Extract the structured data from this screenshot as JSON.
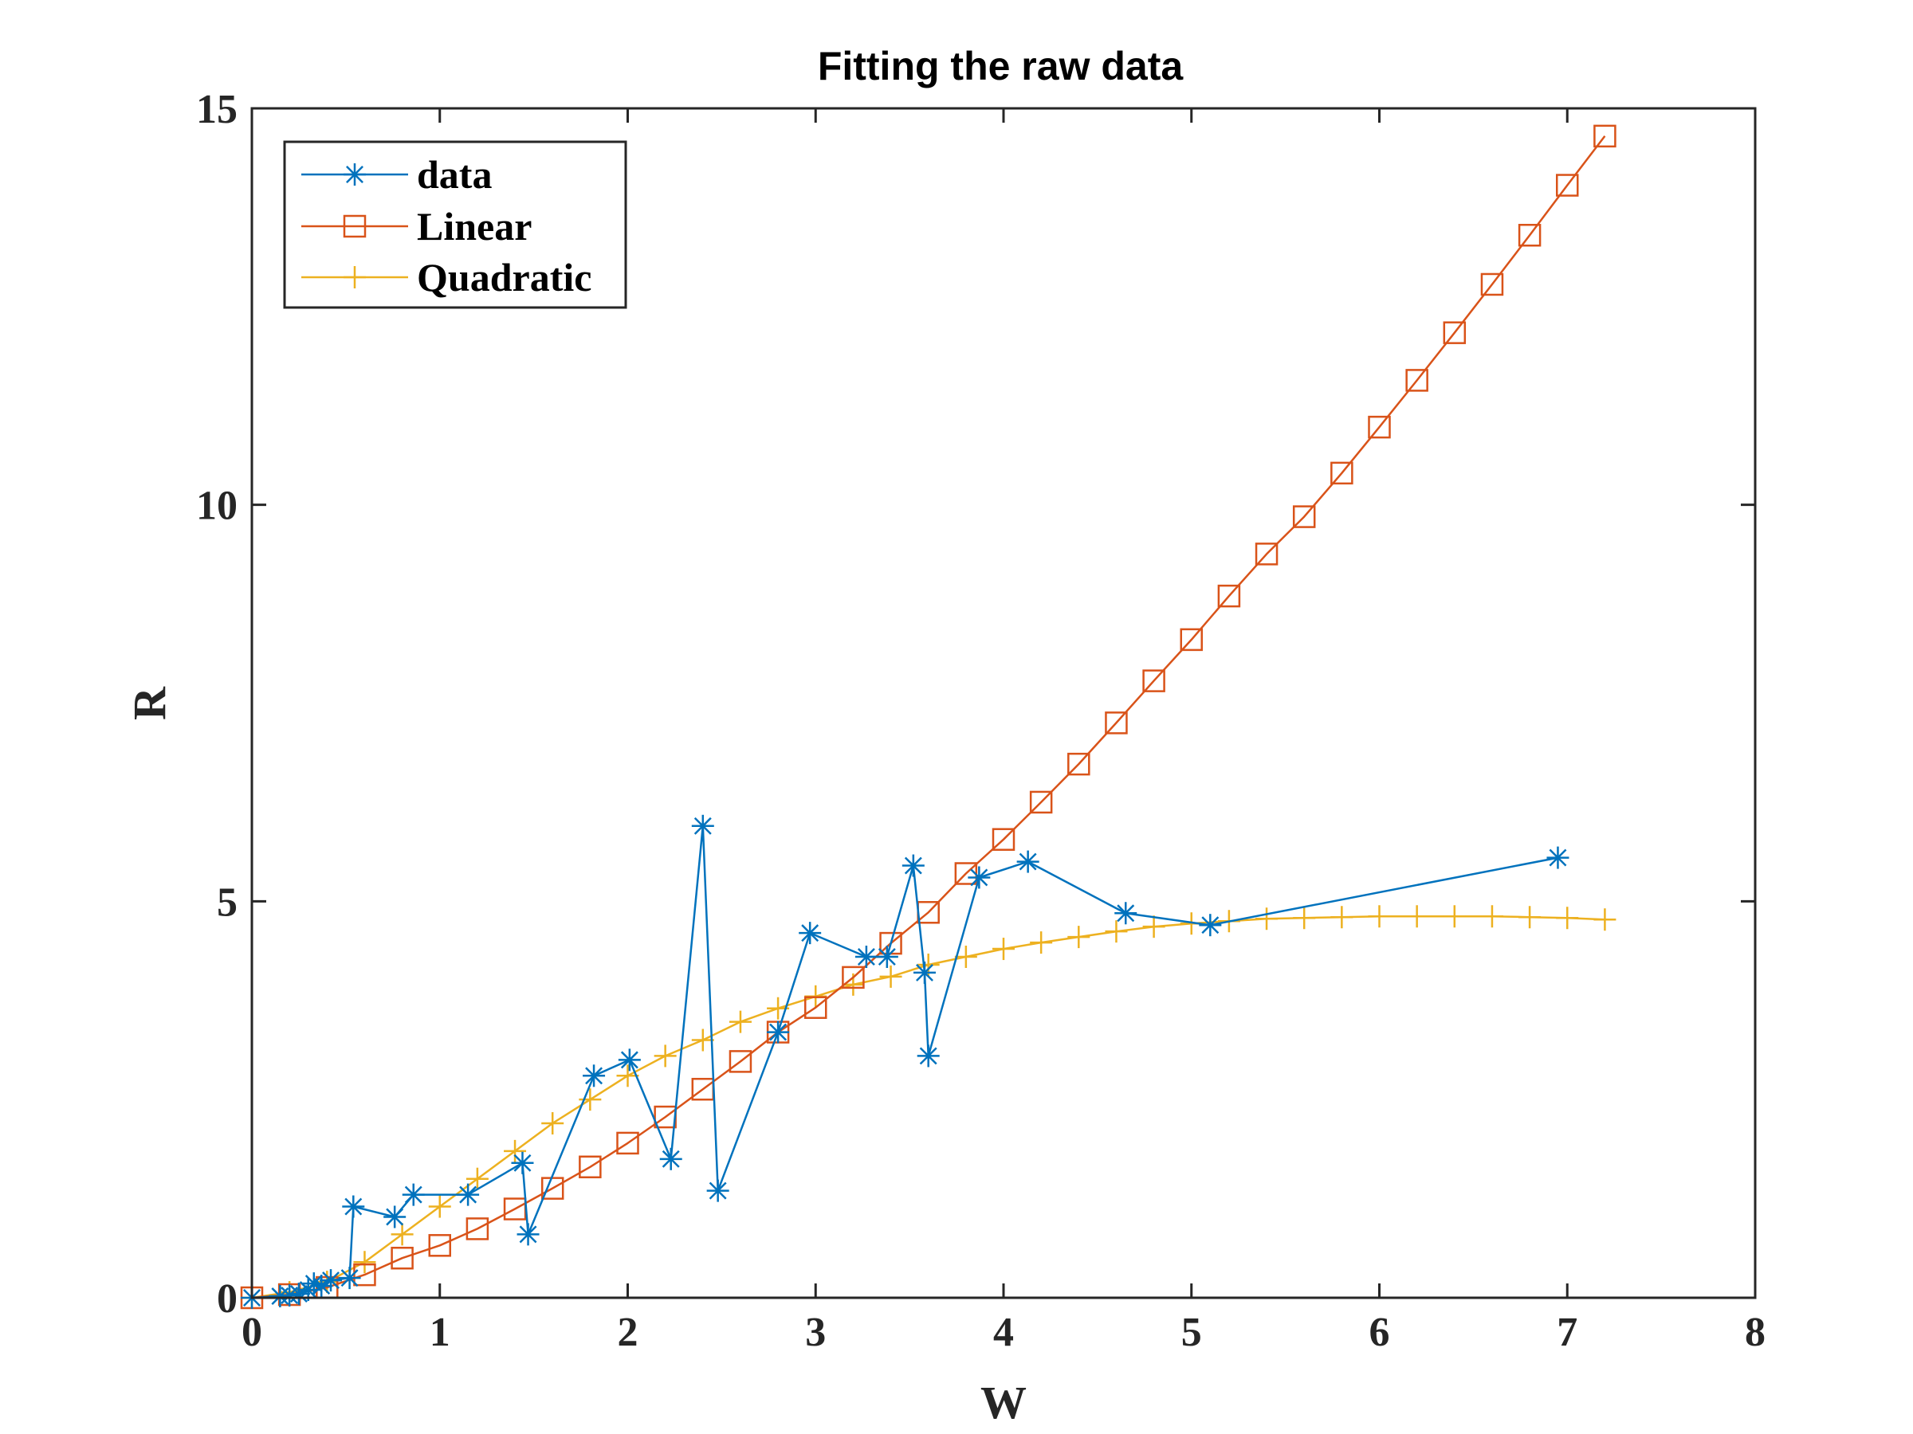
{
  "chart_data": {
    "type": "line",
    "title": "Fitting the raw data",
    "xlabel": "W",
    "ylabel": "R",
    "xlim": [
      0,
      8
    ],
    "ylim": [
      0,
      15
    ],
    "xticks": [
      0,
      1,
      2,
      3,
      4,
      5,
      6,
      7,
      8
    ],
    "yticks": [
      0,
      5,
      10,
      15
    ],
    "xtick_labels": [
      "0",
      "1",
      "2",
      "3",
      "4",
      "5",
      "6",
      "7",
      "8"
    ],
    "ytick_labels": [
      "0",
      "5",
      "10",
      "15"
    ],
    "grid": false,
    "legend_position": "top-left",
    "series": [
      {
        "name": "data",
        "color": "#0072BD",
        "marker": "asterisk",
        "x": [
          0.0,
          0.15,
          0.2,
          0.25,
          0.3,
          0.33,
          0.37,
          0.42,
          0.52,
          0.54,
          0.76,
          0.86,
          1.15,
          1.44,
          1.47,
          1.82,
          2.01,
          2.23,
          2.4,
          2.48,
          2.8,
          2.97,
          3.27,
          3.38,
          3.52,
          3.58,
          3.6,
          3.87,
          4.13,
          4.65,
          5.1,
          6.95
        ],
        "y": [
          0.0,
          0.02,
          0.03,
          0.05,
          0.1,
          0.18,
          0.15,
          0.22,
          0.25,
          1.15,
          1.02,
          1.3,
          1.3,
          1.7,
          0.8,
          2.8,
          3.0,
          1.75,
          5.95,
          1.35,
          3.35,
          4.6,
          4.3,
          4.3,
          5.45,
          4.1,
          3.05,
          5.3,
          5.5,
          4.85,
          4.7,
          5.55
        ]
      },
      {
        "name": "Linear",
        "color": "#D95319",
        "marker": "square",
        "x": [
          0.0,
          0.2,
          0.4,
          0.6,
          0.8,
          1.0,
          1.2,
          1.4,
          1.6,
          1.8,
          2.0,
          2.2,
          2.4,
          2.6,
          2.8,
          3.0,
          3.2,
          3.4,
          3.6,
          3.8,
          4.0,
          4.2,
          4.4,
          4.6,
          4.8,
          5.0,
          5.2,
          5.4,
          5.6,
          5.8,
          6.0,
          6.2,
          6.4,
          6.6,
          6.8,
          7.0,
          7.2
        ],
        "y": [
          0.0,
          0.04,
          0.13,
          0.29,
          0.5,
          0.66,
          0.87,
          1.12,
          1.38,
          1.65,
          1.95,
          2.28,
          2.63,
          2.98,
          3.35,
          3.66,
          4.04,
          4.47,
          4.86,
          5.35,
          5.78,
          6.25,
          6.73,
          7.25,
          7.78,
          8.3,
          8.85,
          9.38,
          9.85,
          10.4,
          10.98,
          11.57,
          12.17,
          12.78,
          13.4,
          14.03,
          14.65
        ]
      },
      {
        "name": "Quadratic",
        "color": "#EDB120",
        "marker": "plus",
        "x": [
          0.0,
          0.2,
          0.4,
          0.6,
          0.8,
          1.0,
          1.2,
          1.4,
          1.6,
          1.8,
          2.0,
          2.2,
          2.4,
          2.6,
          2.8,
          3.0,
          3.2,
          3.4,
          3.6,
          3.8,
          4.0,
          4.2,
          4.4,
          4.6,
          4.8,
          5.0,
          5.2,
          5.4,
          5.6,
          5.8,
          6.0,
          6.2,
          6.4,
          6.6,
          6.8,
          7.0,
          7.2
        ],
        "y": [
          0.0,
          0.07,
          0.2,
          0.45,
          0.8,
          1.15,
          1.5,
          1.85,
          2.2,
          2.5,
          2.8,
          3.05,
          3.25,
          3.48,
          3.65,
          3.8,
          3.95,
          4.05,
          4.2,
          4.3,
          4.4,
          4.48,
          4.55,
          4.62,
          4.68,
          4.72,
          4.75,
          4.78,
          4.79,
          4.8,
          4.81,
          4.81,
          4.81,
          4.81,
          4.8,
          4.79,
          4.77
        ]
      }
    ]
  }
}
